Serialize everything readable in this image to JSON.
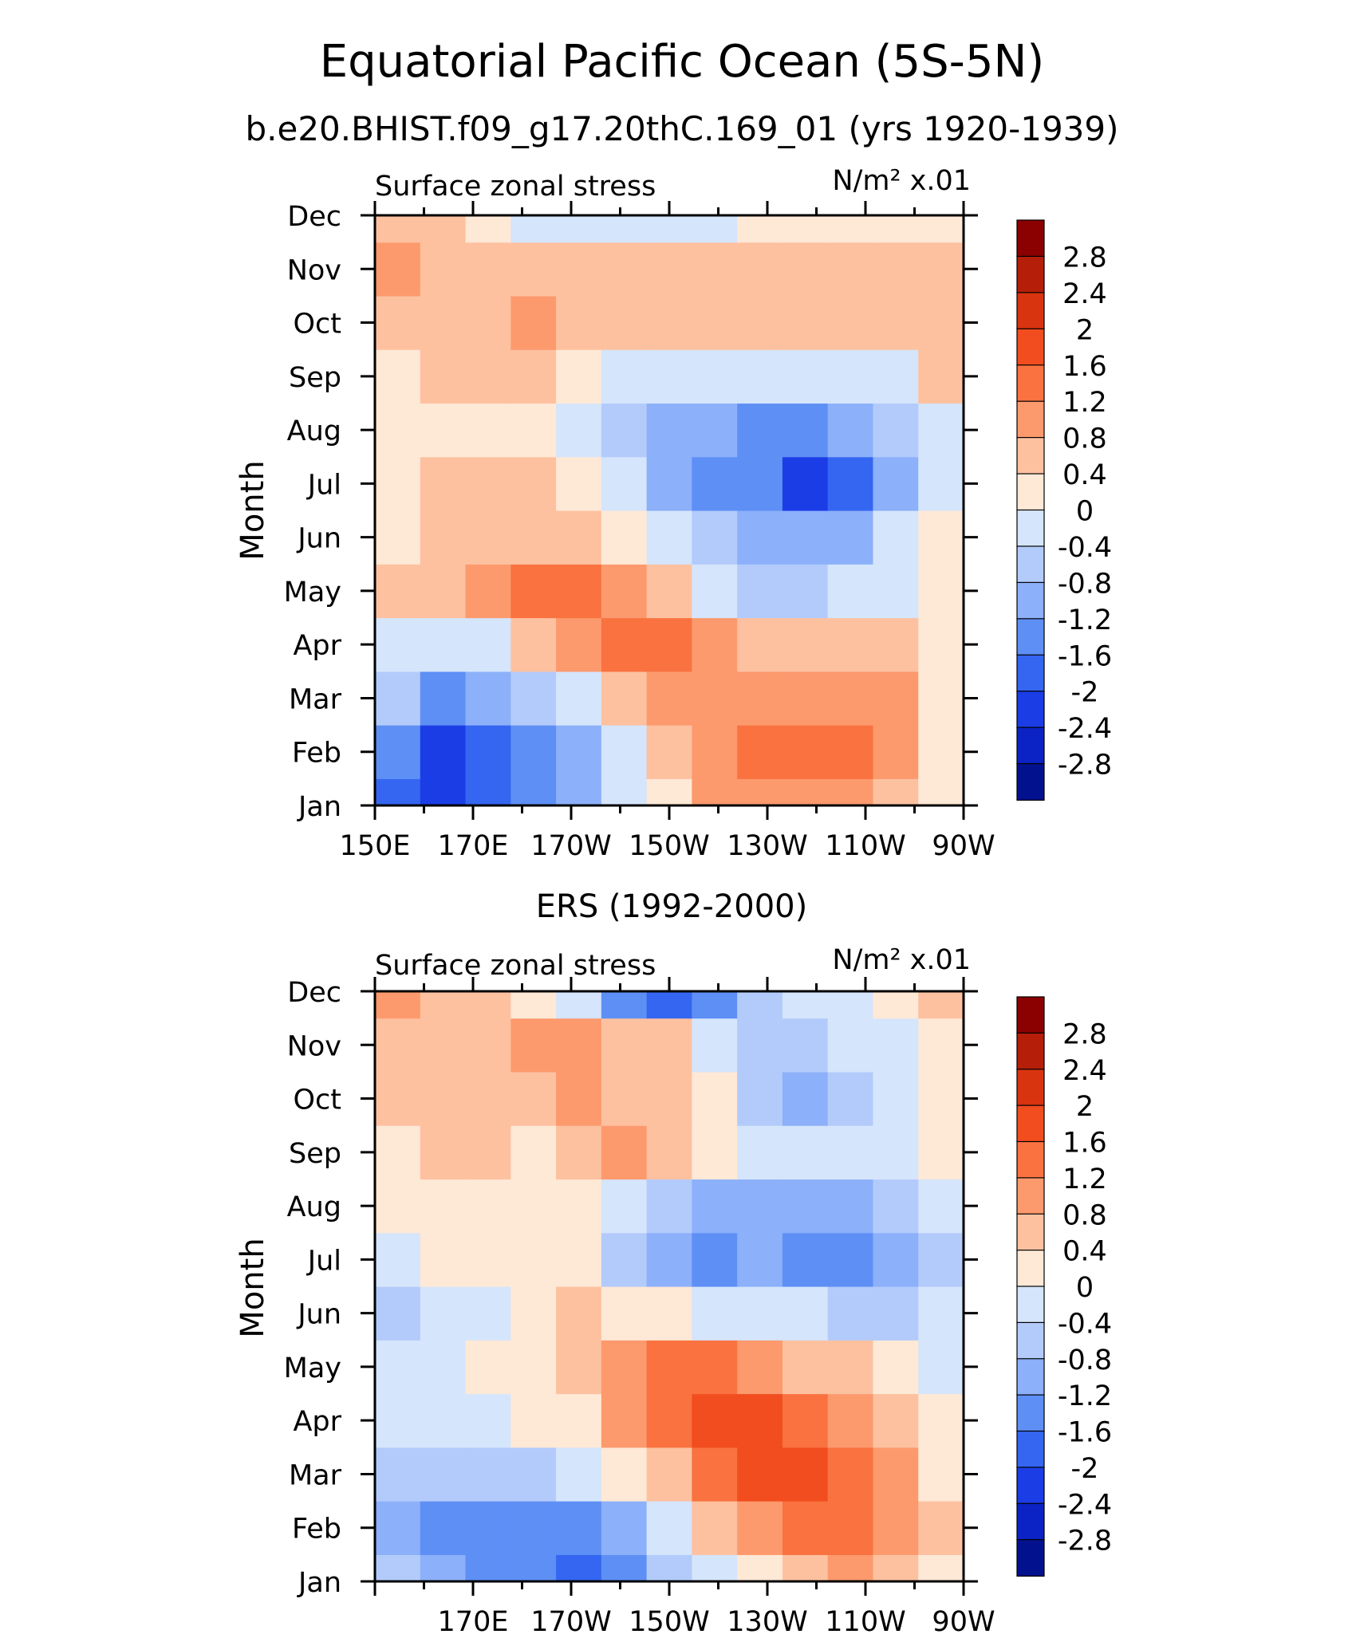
{
  "figure": {
    "title": "Equatorial Pacific Ocean (5S-5N)",
    "subtitle": "b.e20.BHIST.f09_g17.20thC.169_01 (yrs 1920-1939)"
  },
  "colorbar": {
    "labels": [
      "2.8",
      "2.4",
      "2",
      "1.6",
      "1.2",
      "0.8",
      "0.4",
      "0",
      "-0.4",
      "-0.8",
      "-1.2",
      "-1.6",
      "-2",
      "-2.4",
      "-2.8"
    ],
    "colors": [
      "#8b0000",
      "#b51f09",
      "#d83410",
      "#f24d1e",
      "#f97240",
      "#fc9a6d",
      "#fdc1a0",
      "#fee8d6",
      "#d5e5fb",
      "#b3cbfb",
      "#8cb0f9",
      "#5e8ff5",
      "#3566f1",
      "#1b3de6",
      "#0b23c4",
      "#02128f"
    ]
  },
  "chart_data": [
    {
      "type": "heatmap",
      "panel_title": "",
      "left_label": "Surface zonal stress",
      "right_label": "N/m² x.01",
      "ylabel": "Month",
      "x_tick_labels": [
        "150E",
        "170E",
        "170W",
        "150W",
        "130W",
        "110W",
        "90W"
      ],
      "y_tick_labels": [
        "Jan",
        "Feb",
        "Mar",
        "Apr",
        "May",
        "Jun",
        "Jul",
        "Aug",
        "Sep",
        "Oct",
        "Nov",
        "Dec"
      ],
      "x_range_deg_east": [
        150,
        270
      ],
      "values": [
        [
          -2.0,
          -2.2,
          -1.7,
          -1.3,
          -0.9,
          -0.3,
          0.3,
          0.8,
          0.9,
          0.9,
          0.9,
          0.7,
          0.2
        ],
        [
          -1.6,
          -2.2,
          -2.0,
          -1.4,
          -0.9,
          -0.2,
          0.4,
          0.9,
          1.3,
          1.4,
          1.2,
          0.8,
          0.2
        ],
        [
          -0.8,
          -1.3,
          -1.0,
          -0.6,
          -0.1,
          0.5,
          0.9,
          1.0,
          1.0,
          1.1,
          1.1,
          0.8,
          0.3
        ],
        [
          -0.3,
          -0.4,
          -0.1,
          0.4,
          1.0,
          1.4,
          1.5,
          1.0,
          0.6,
          0.7,
          0.6,
          0.4,
          0.1
        ],
        [
          0.4,
          0.6,
          1.0,
          1.2,
          1.4,
          1.0,
          0.5,
          -0.2,
          -0.6,
          -0.6,
          -0.4,
          -0.1,
          0.1
        ],
        [
          0.3,
          0.5,
          0.7,
          0.6,
          0.4,
          0.2,
          -0.2,
          -0.6,
          -0.9,
          -1.2,
          -1.0,
          -0.4,
          0.1
        ],
        [
          0.3,
          0.5,
          0.6,
          0.5,
          0.2,
          -0.4,
          -1.0,
          -1.3,
          -1.6,
          -2.2,
          -1.9,
          -0.9,
          -0.2
        ],
        [
          0.2,
          0.3,
          0.3,
          0.2,
          -0.1,
          -0.7,
          -1.0,
          -1.1,
          -1.3,
          -1.4,
          -1.2,
          -0.7,
          -0.1
        ],
        [
          0.3,
          0.4,
          0.4,
          0.4,
          0.1,
          -0.1,
          -0.3,
          -0.4,
          -0.4,
          -0.4,
          -0.3,
          -0.1,
          0.4
        ],
        [
          0.5,
          0.6,
          0.6,
          0.8,
          0.6,
          0.5,
          0.4,
          0.5,
          0.6,
          0.6,
          0.6,
          0.6,
          0.6
        ],
        [
          0.9,
          0.7,
          0.6,
          0.6,
          0.6,
          0.5,
          0.4,
          0.5,
          0.6,
          0.7,
          0.7,
          0.7,
          0.7
        ],
        [
          0.7,
          0.4,
          0.1,
          -0.2,
          -0.3,
          -0.3,
          -0.3,
          -0.1,
          0.2,
          0.3,
          0.3,
          0.3,
          0.3
        ]
      ]
    },
    {
      "type": "heatmap",
      "panel_title": "ERS (1992-2000)",
      "left_label": "Surface zonal stress",
      "right_label": "N/m² x.01",
      "ylabel": "Month",
      "x_tick_labels": [
        "170E",
        "170W",
        "150W",
        "130W",
        "110W",
        "90W"
      ],
      "y_tick_labels": [
        "Jan",
        "Feb",
        "Mar",
        "Apr",
        "May",
        "Jun",
        "Jul",
        "Aug",
        "Sep",
        "Oct",
        "Nov",
        "Dec"
      ],
      "x_range_deg_east": [
        150,
        270
      ],
      "values": [
        [
          -0.6,
          -1.0,
          -1.5,
          -1.6,
          -1.9,
          -1.3,
          -0.7,
          -0.3,
          0.1,
          0.4,
          0.8,
          0.6,
          0.2
        ],
        [
          -1.1,
          -1.4,
          -1.4,
          -1.6,
          -1.5,
          -1.0,
          -0.3,
          0.5,
          1.1,
          1.2,
          1.2,
          1.0,
          0.4
        ],
        [
          -0.6,
          -0.5,
          -0.5,
          -0.6,
          -0.4,
          0.1,
          0.7,
          1.3,
          1.8,
          1.8,
          1.4,
          0.8,
          0.3
        ],
        [
          -0.3,
          -0.3,
          -0.3,
          0.0,
          0.3,
          0.8,
          1.3,
          1.7,
          1.6,
          1.2,
          0.9,
          0.5,
          0.1
        ],
        [
          -0.2,
          -0.2,
          0.0,
          0.3,
          0.6,
          1.1,
          1.4,
          1.3,
          1.0,
          0.6,
          0.4,
          0.1,
          -0.1
        ],
        [
          -0.5,
          -0.3,
          -0.1,
          0.2,
          0.5,
          0.3,
          0.1,
          -0.1,
          -0.3,
          -0.4,
          -0.5,
          -0.8,
          -0.4
        ],
        [
          -0.1,
          0.0,
          0.1,
          0.2,
          0.0,
          -0.6,
          -1.1,
          -1.4,
          -1.2,
          -1.6,
          -1.5,
          -1.0,
          -0.5
        ],
        [
          0.1,
          0.2,
          0.3,
          0.2,
          0.1,
          -0.2,
          -0.6,
          -0.9,
          -0.9,
          -0.9,
          -0.9,
          -0.6,
          -0.2
        ],
        [
          0.2,
          0.4,
          0.4,
          0.3,
          0.6,
          0.9,
          0.5,
          0.2,
          -0.1,
          -0.3,
          -0.2,
          -0.1,
          0.3
        ],
        [
          0.4,
          0.7,
          0.5,
          0.5,
          0.8,
          0.7,
          0.5,
          0.1,
          -0.6,
          -0.9,
          -0.5,
          -0.2,
          0.0
        ],
        [
          0.5,
          0.7,
          0.6,
          0.8,
          1.0,
          0.7,
          0.4,
          -0.1,
          -0.6,
          -0.6,
          -0.4,
          -0.1,
          0.0
        ],
        [
          0.9,
          0.5,
          0.4,
          0.1,
          -0.3,
          -1.3,
          -1.8,
          -1.4,
          -0.6,
          -0.2,
          -0.1,
          0.1,
          0.4
        ]
      ]
    }
  ]
}
